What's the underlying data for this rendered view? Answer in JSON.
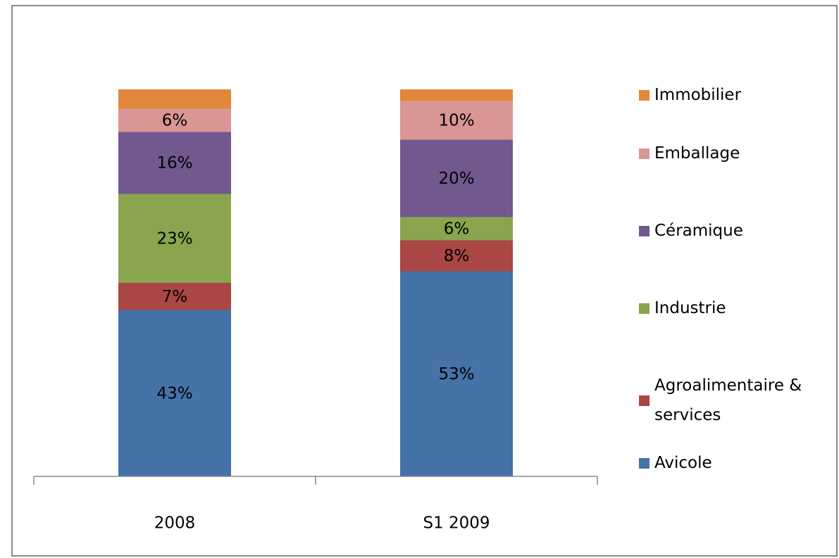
{
  "chart_data": {
    "type": "stacked_bar",
    "categories": [
      "2008",
      "S1 2009"
    ],
    "ylim": [
      0,
      100
    ],
    "series": [
      {
        "name": "Avicole",
        "color": "#4572a7",
        "values": [
          43,
          53
        ],
        "value_labels": [
          "43%",
          "53%"
        ]
      },
      {
        "name": "Agroalimentaire & services",
        "color": "#aa4643",
        "values": [
          7,
          8
        ],
        "value_labels": [
          "7%",
          "8%"
        ]
      },
      {
        "name": "Industrie",
        "color": "#89a54e",
        "values": [
          23,
          6
        ],
        "value_labels": [
          "23%",
          "6%"
        ]
      },
      {
        "name": "Céramique",
        "color": "#71588f",
        "values": [
          16,
          20
        ],
        "value_labels": [
          "16%",
          "20%"
        ]
      },
      {
        "name": "Emballage",
        "color": "#d99694",
        "values": [
          6,
          10
        ],
        "value_labels": [
          "6%",
          "10%"
        ]
      },
      {
        "name": "Immobilier",
        "color": "#e0873b",
        "values": [
          5,
          3
        ],
        "value_labels": [
          null,
          null
        ]
      }
    ],
    "legend": "right"
  }
}
